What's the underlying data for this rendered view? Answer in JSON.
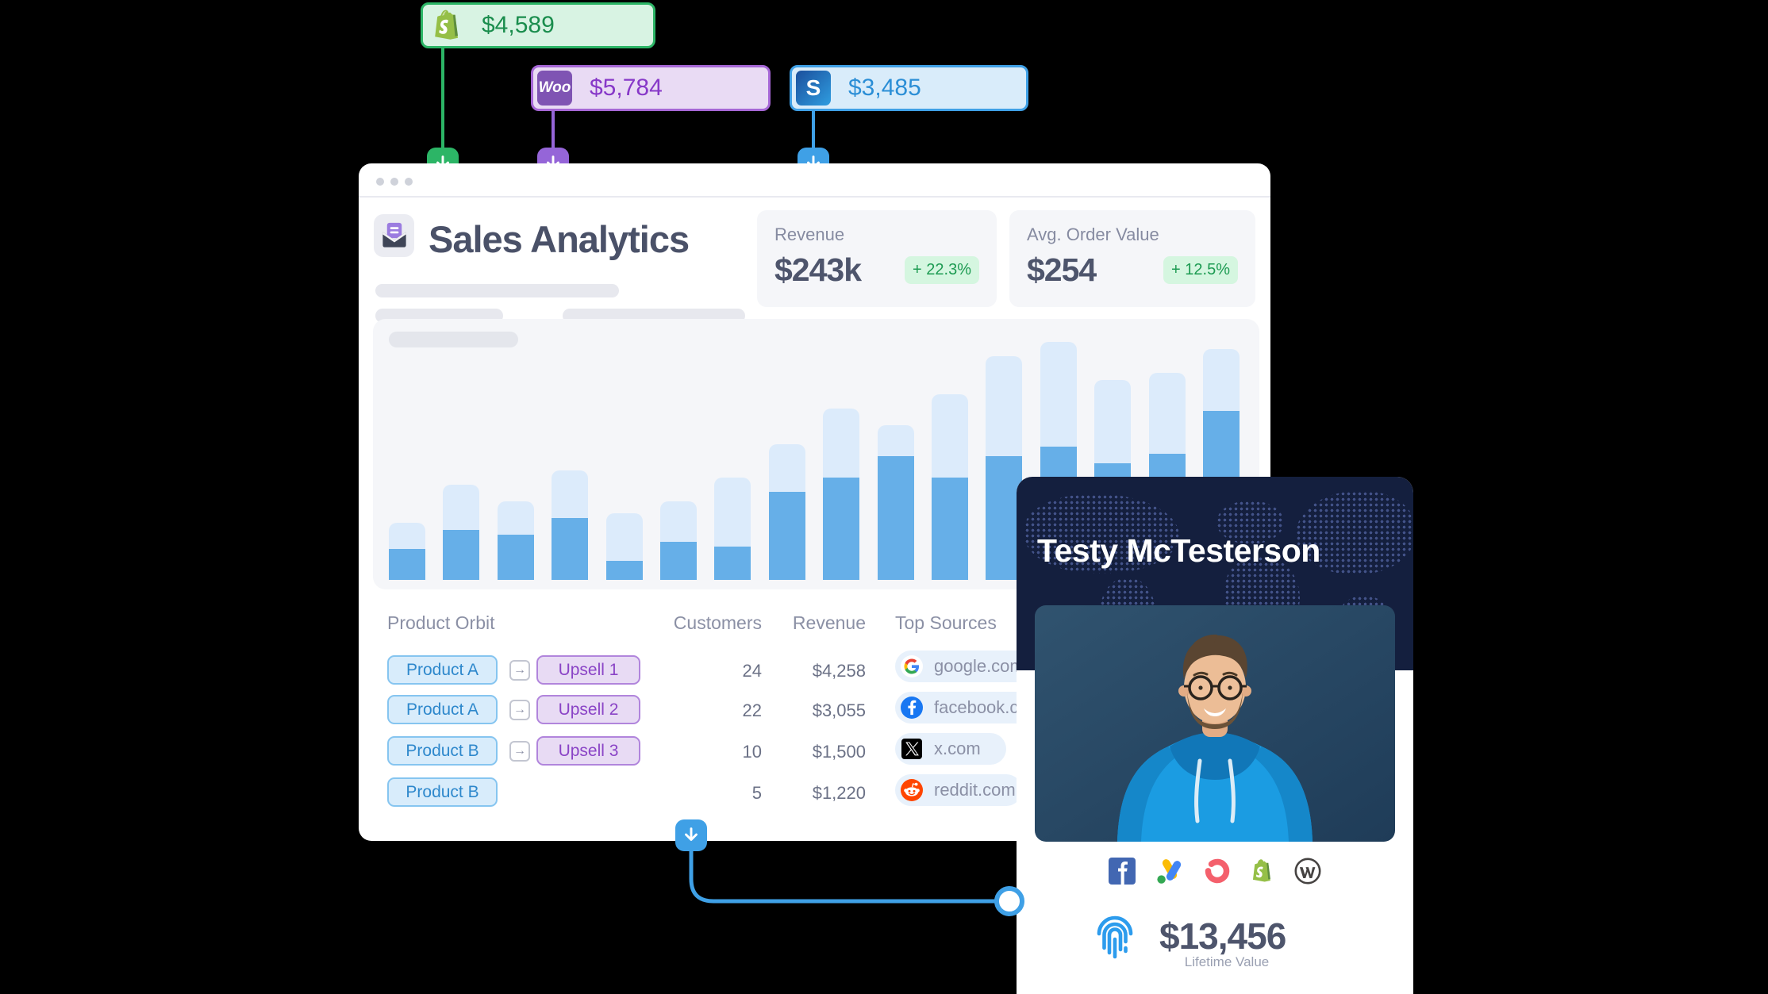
{
  "colors": {
    "accent_green": "#2cb566",
    "accent_purple": "#9565d8",
    "accent_blue": "#3fa0e6",
    "bar_light": "#dcebfb",
    "bar_dark": "#66afe8",
    "positive_badge_bg": "#d5f6e0",
    "positive_text": "#1d9b52",
    "card_bg": "#f5f6f9",
    "title_text": "#4a5168",
    "muted_text": "#8b90a5",
    "navy_header": "#141f3e"
  },
  "integration_badges": [
    {
      "id": "shopify",
      "amount": "$4,589",
      "icon": "shopify-bag-icon"
    },
    {
      "id": "woocommerce",
      "amount": "$5,784",
      "icon": "woo-icon",
      "icon_label": "Woo"
    },
    {
      "id": "s-platform",
      "amount": "$3,485",
      "icon": "s-icon",
      "icon_label": "S"
    }
  ],
  "window": {
    "title": "Sales Analytics",
    "metrics": [
      {
        "label": "Revenue",
        "value": "$243k",
        "delta": "+ 22.3%"
      },
      {
        "label": "Avg. Order Value",
        "value": "$254",
        "delta": "+ 12.5%"
      }
    ],
    "table": {
      "headers": [
        "Product Orbit",
        "Customers",
        "Revenue"
      ],
      "arrow_glyph": "→",
      "rows": [
        {
          "product": "Product A",
          "upsell": "Upsell 1",
          "customers": "24",
          "revenue": "$4,258"
        },
        {
          "product": "Product A",
          "upsell": "Upsell 2",
          "customers": "22",
          "revenue": "$3,055"
        },
        {
          "product": "Product B",
          "upsell": "Upsell 3",
          "customers": "10",
          "revenue": "$1,500"
        },
        {
          "product": "Product B",
          "upsell": "",
          "customers": "5",
          "revenue": "$1,220"
        }
      ]
    },
    "top_sources": {
      "title": "Top Sources",
      "items": [
        {
          "icon": "google-icon",
          "label": "google.com"
        },
        {
          "icon": "facebook-icon",
          "label": "facebook.com"
        },
        {
          "icon": "x-icon",
          "label": "x.com"
        },
        {
          "icon": "reddit-icon",
          "label": "reddit.com"
        }
      ]
    }
  },
  "chart_data": {
    "type": "bar",
    "stacked": true,
    "title": "",
    "xlabel": "",
    "ylabel": "",
    "ylim": [
      0,
      100
    ],
    "grid": false,
    "legend": false,
    "categories": [
      "",
      "",
      "",
      "",
      "",
      "",
      "",
      "",
      "",
      "",
      "",
      "",
      "",
      "",
      "",
      ""
    ],
    "series": [
      {
        "name": "base",
        "color": "#66afe8",
        "values": [
          13,
          21,
          19,
          26,
          8,
          16,
          14,
          37,
          43,
          52,
          43,
          52,
          56,
          49,
          53,
          71
        ]
      },
      {
        "name": "upside",
        "color": "#dcebfb",
        "values": [
          11,
          19,
          14,
          20,
          20,
          17,
          29,
          20,
          29,
          13,
          35,
          42,
          44,
          35,
          34,
          26
        ]
      }
    ],
    "note": "values are estimated percent of chart height; light segment stacked on dark"
  },
  "profile": {
    "name": "Testy McTesterson",
    "lifetime_value": "$13,456",
    "lifetime_label": "Lifetime Value",
    "platform_icons": [
      "facebook-icon",
      "google-ads-icon",
      "ring-icon",
      "shopify-icon",
      "wordpress-icon"
    ]
  }
}
